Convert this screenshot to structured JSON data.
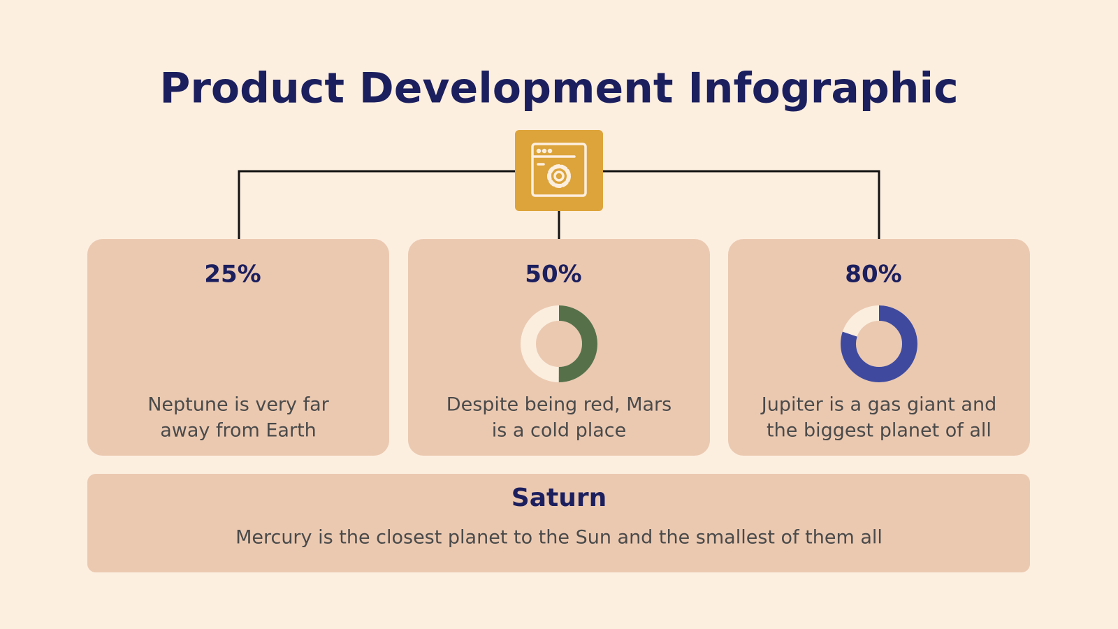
{
  "header": {
    "title": "Product Development Infographic"
  },
  "cards": [
    {
      "label": "25%",
      "description": [
        "Neptune is very far",
        "away from Earth"
      ]
    },
    {
      "label": "50%",
      "value": 50,
      "color": "#56714a",
      "description": [
        "Despite being red, Mars",
        "is a cold place"
      ]
    },
    {
      "label": "80%",
      "value": 80,
      "color": "#3f4a9e",
      "description": [
        "Jupiter is a gas giant and",
        "the biggest planet of all"
      ]
    }
  ],
  "footer": {
    "title": "Saturn",
    "text": "Mercury is the closest planet to the Sun and the smallest of them all"
  }
}
